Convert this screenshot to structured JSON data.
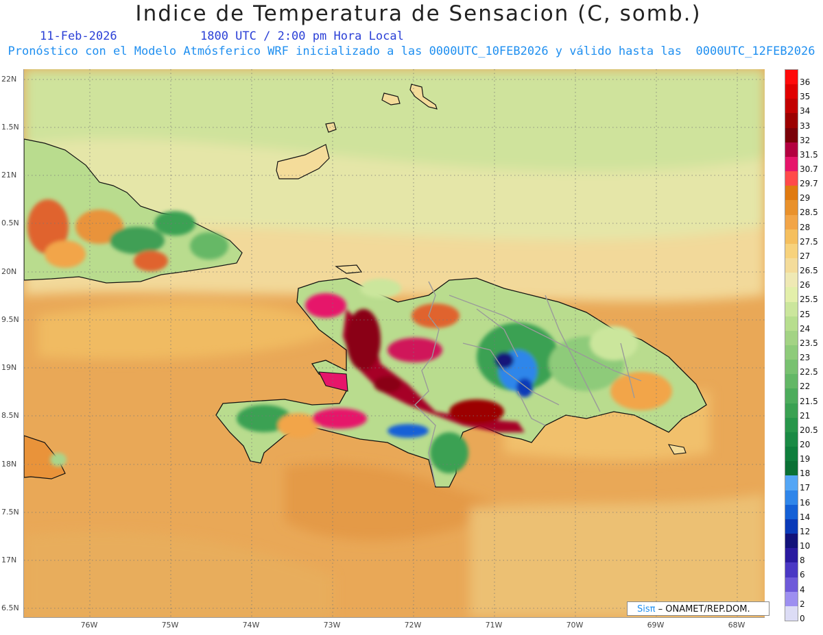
{
  "header": {
    "title": "Indice de Temperatura de Sensacion (C, somb.)",
    "date": "11-Feb-2026",
    "time": "1800 UTC / 2:00 pm Hora Local",
    "model_line": "Pronóstico con el Modelo Atmósferico WRF inicializado a las 0000UTC_10FEB2026 y válido hasta las  0000UTC_12FEB2026"
  },
  "axes": {
    "lat_labels": [
      "22N",
      "1.5N",
      "21N",
      "0.5N",
      "20N",
      "9.5N",
      "19N",
      "8.5N",
      "18N",
      "7.5N",
      "17N",
      "6.5N"
    ],
    "lon_labels": [
      "76W",
      "75W",
      "74W",
      "73W",
      "72W",
      "71W",
      "70W",
      "69W",
      "68W"
    ]
  },
  "legend": {
    "labels": [
      "36",
      "35",
      "34",
      "33",
      "32",
      "31.5",
      "30.7",
      "29.7",
      "29",
      "28.5",
      "28",
      "27.5",
      "27",
      "26.5",
      "26",
      "25.5",
      "25",
      "24",
      "23.5",
      "23",
      "22.5",
      "22",
      "21.5",
      "21",
      "20.5",
      "20",
      "19",
      "18",
      "17",
      "16",
      "14",
      "12",
      "10",
      "8",
      "6",
      "4",
      "2",
      "0"
    ],
    "colors": [
      "#ff0a0a",
      "#e00000",
      "#c20000",
      "#9c0000",
      "#7a0008",
      "#b3003f",
      "#e6156a",
      "#ff4a4a",
      "#e07a10",
      "#e9912c",
      "#f2a548",
      "#f5bf5e",
      "#f7d27c",
      "#f4dc9a",
      "#efe9b4",
      "#e3efaa",
      "#cbe69c",
      "#b7de8e",
      "#a3d384",
      "#8ecb7a",
      "#78c170",
      "#63b766",
      "#4dac5c",
      "#3aa152",
      "#27964a",
      "#1a8a44",
      "#0f7e3c",
      "#0a7034",
      "#54a6f5",
      "#2f86ea",
      "#1460d6",
      "#0a3ab8",
      "#12127a",
      "#2a1aa0",
      "#4a38c4",
      "#6e5ad9",
      "#9d8ff0",
      "#dcdcf5"
    ]
  },
  "credit": {
    "sis": "Sisπ",
    "org": " – ONAMET/REP.DOM."
  }
}
